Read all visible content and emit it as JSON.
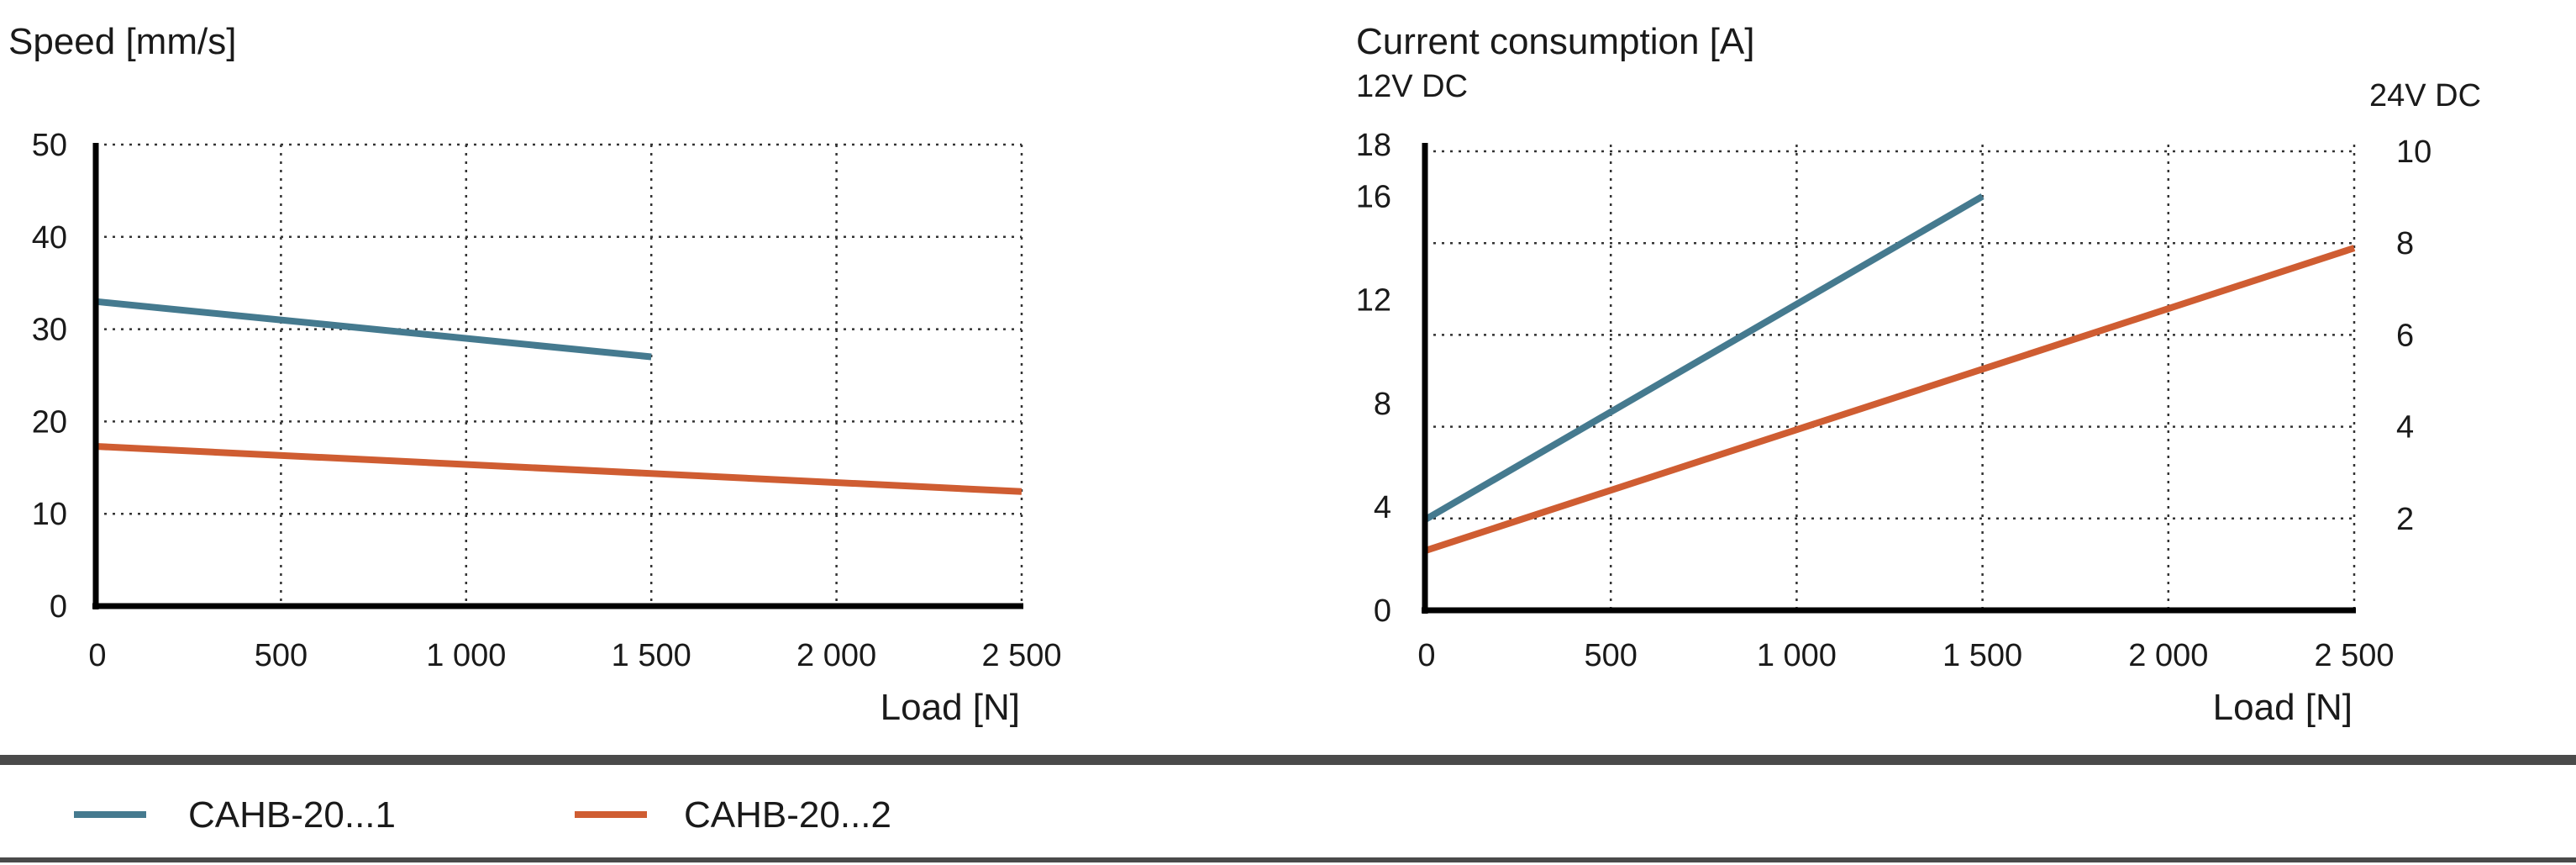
{
  "chart_data": [
    {
      "type": "line",
      "title": "Speed [mm/s]",
      "xlabel": "Load [N]",
      "ylabel": "Speed [mm/s]",
      "xlim": [
        0,
        2500
      ],
      "ylim": [
        0,
        50
      ],
      "xticks": [
        0,
        500,
        1000,
        1500,
        2000,
        2500
      ],
      "xtick_labels": [
        "0",
        "500",
        "1 000",
        "1 500",
        "2 000",
        "2 500"
      ],
      "yticks": [
        0,
        10,
        20,
        30,
        40,
        50
      ],
      "ytick_labels": [
        "0",
        "10",
        "20",
        "30",
        "40",
        "50"
      ],
      "grid": true,
      "series": [
        {
          "name": "CAHB-20...1",
          "x": [
            0,
            1500
          ],
          "y": [
            33,
            27
          ]
        },
        {
          "name": "CAHB-20...2",
          "x": [
            0,
            2500
          ],
          "y": [
            17.3,
            12.4
          ]
        }
      ]
    },
    {
      "type": "line",
      "title": "Current consumption [A]",
      "ylabel_left": "12V DC",
      "ylabel_right": "24V DC",
      "xlabel": "Load [N]",
      "xlim": [
        0,
        2500
      ],
      "ylim": [
        0,
        18
      ],
      "ylim_right": [
        0,
        10
      ],
      "xticks": [
        0,
        500,
        1000,
        1500,
        2000,
        2500
      ],
      "xtick_labels": [
        "0",
        "500",
        "1 000",
        "1 500",
        "2 000",
        "2 500"
      ],
      "yticks": [
        0,
        4,
        8,
        12,
        16,
        18
      ],
      "ytick_labels": [
        "0",
        "4",
        "8",
        "12",
        "16",
        "18"
      ],
      "yticks_right": [
        2,
        4,
        6,
        8,
        10
      ],
      "ytick_labels_right": [
        "2",
        "4",
        "6",
        "8",
        "10"
      ],
      "grid": true,
      "series": [
        {
          "name": "CAHB-20...1",
          "x": [
            0,
            1500
          ],
          "y": [
            3.5,
            16
          ]
        },
        {
          "name": "CAHB-20...2",
          "x": [
            0,
            2500
          ],
          "y": [
            2.3,
            14
          ]
        }
      ]
    }
  ],
  "legend": [
    {
      "label": "CAHB-20...1",
      "color": "#457a8f"
    },
    {
      "label": "CAHB-20...2",
      "color": "#cf5d32"
    }
  ],
  "colors": {
    "series1": "#457a8f",
    "series2": "#cf5d32",
    "rule": "#4a4a4a",
    "axis": "#000000"
  }
}
